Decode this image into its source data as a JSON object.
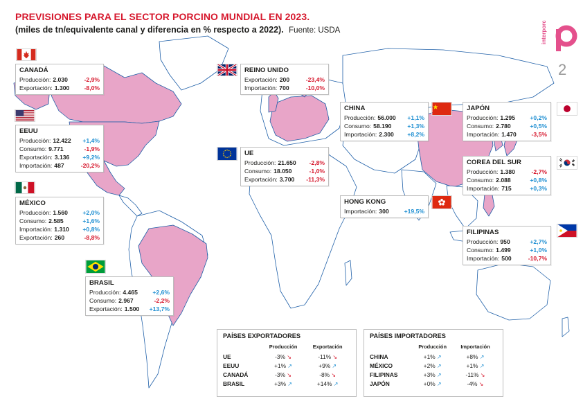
{
  "header": {
    "title": "PREVISIONES PARA EL SECTOR PORCINO MUNDIAL EN 2023.",
    "subtitle": "(miles de tn/equivalente canal y diferencia en % respecto a 2022).",
    "source": "Fuente: USDA",
    "logo_text": "interporc",
    "page_number": "2"
  },
  "colors": {
    "title_red": "#d6172c",
    "highlight_pink": "#e8a5c8",
    "land": "#ffffff",
    "border": "#1e5fa8",
    "positive": "#1f8fd2",
    "negative": "#d6172c"
  },
  "countries": {
    "canada": {
      "name": "CANADÁ",
      "flag": "canada-flag",
      "rows": [
        {
          "label": "Producción",
          "value": "2.030",
          "change": "-2,9%",
          "dir": "neg"
        },
        {
          "label": "Exportación",
          "value": "1.300",
          "change": "-8,0%",
          "dir": "neg"
        }
      ]
    },
    "eeuu": {
      "name": "EEUU",
      "flag": "usa-flag",
      "rows": [
        {
          "label": "Producción",
          "value": "12.422",
          "change": "+1,4%",
          "dir": "pos"
        },
        {
          "label": "Consumo",
          "value": "9.771",
          "change": "-1,9%",
          "dir": "neg"
        },
        {
          "label": "Exportación",
          "value": "3.136",
          "change": "+9,2%",
          "dir": "pos"
        },
        {
          "label": "Importación",
          "value": "487",
          "change": "-20,2%",
          "dir": "neg"
        }
      ]
    },
    "mexico": {
      "name": "MÉXICO",
      "flag": "mexico-flag",
      "rows": [
        {
          "label": "Producción",
          "value": "1.560",
          "change": "+2,0%",
          "dir": "pos"
        },
        {
          "label": "Consumo",
          "value": "2.585",
          "change": "+1,6%",
          "dir": "pos"
        },
        {
          "label": "Importación",
          "value": "1.310",
          "change": "+0,8%",
          "dir": "pos"
        },
        {
          "label": "Exportación",
          "value": "260",
          "change": "-8,8%",
          "dir": "neg"
        }
      ]
    },
    "brasil": {
      "name": "BRASIL",
      "flag": "brazil-flag",
      "rows": [
        {
          "label": "Producción",
          "value": "4.465",
          "change": "+2,6%",
          "dir": "pos"
        },
        {
          "label": "Consumo",
          "value": "2.967",
          "change": "-2,2%",
          "dir": "neg"
        },
        {
          "label": "Exportación",
          "value": "1.500",
          "change": "+13,7%",
          "dir": "pos"
        }
      ]
    },
    "reino_unido": {
      "name": "REINO UNIDO",
      "flag": "uk-flag",
      "rows": [
        {
          "label": "Exportación",
          "value": "200",
          "change": "-23,4%",
          "dir": "neg"
        },
        {
          "label": "Importación",
          "value": "700",
          "change": "-10,0%",
          "dir": "neg"
        }
      ]
    },
    "ue": {
      "name": "UE",
      "flag": "eu-flag",
      "rows": [
        {
          "label": "Producción",
          "value": "21.650",
          "change": "-2,8%",
          "dir": "neg"
        },
        {
          "label": "Consumo",
          "value": "18.050",
          "change": "-1,0%",
          "dir": "neg"
        },
        {
          "label": "Exportación",
          "value": "3.700",
          "change": "-11,3%",
          "dir": "neg"
        }
      ]
    },
    "china": {
      "name": "CHINA",
      "flag": "china-flag",
      "rows": [
        {
          "label": "Producción",
          "value": "56.000",
          "change": "+1,1%",
          "dir": "pos"
        },
        {
          "label": "Consumo",
          "value": "58.190",
          "change": "+1,3%",
          "dir": "pos"
        },
        {
          "label": "Importación",
          "value": "2.300",
          "change": "+8,2%",
          "dir": "pos"
        }
      ]
    },
    "hong_kong": {
      "name": "HONG KONG",
      "flag": "hongkong-flag",
      "rows": [
        {
          "label": "Importación",
          "value": "300",
          "change": "+19,5%",
          "dir": "pos"
        }
      ]
    },
    "japon": {
      "name": "JAPÓN",
      "flag": "japan-flag",
      "rows": [
        {
          "label": "Producción",
          "value": "1.295",
          "change": "+0,2%",
          "dir": "pos"
        },
        {
          "label": "Consumo",
          "value": "2.780",
          "change": "+0,5%",
          "dir": "pos"
        },
        {
          "label": "Importación",
          "value": "1.470",
          "change": "-3,5%",
          "dir": "neg"
        }
      ]
    },
    "corea": {
      "name": "COREA DEL SUR",
      "flag": "korea-flag",
      "rows": [
        {
          "label": "Producción",
          "value": "1.380",
          "change": "-2,7%",
          "dir": "neg"
        },
        {
          "label": "Consumo",
          "value": "2.088",
          "change": "+0,8%",
          "dir": "pos"
        },
        {
          "label": "Importación",
          "value": "715",
          "change": "+0,3%",
          "dir": "pos"
        }
      ]
    },
    "filipinas": {
      "name": "FILIPINAS",
      "flag": "philippines-flag",
      "rows": [
        {
          "label": "Producción",
          "value": "950",
          "change": "+2,7%",
          "dir": "pos"
        },
        {
          "label": "Consumo",
          "value": "1.499",
          "change": "+1,0%",
          "dir": "pos"
        },
        {
          "label": "Importación",
          "value": "500",
          "change": "-10,7%",
          "dir": "neg"
        }
      ]
    }
  },
  "exporters": {
    "title": "PAÍSES EXPORTADORES",
    "col1": "Producción",
    "col2": "Exportación",
    "rows": [
      {
        "country": "UE",
        "v1": "-3%",
        "d1": "dn",
        "v2": "-11%",
        "d2": "dn"
      },
      {
        "country": "EEUU",
        "v1": "+1%",
        "d1": "up",
        "v2": "+9%",
        "d2": "up"
      },
      {
        "country": "CANADÁ",
        "v1": "-3%",
        "d1": "dn",
        "v2": "-8%",
        "d2": "dn"
      },
      {
        "country": "BRASIL",
        "v1": "+3%",
        "d1": "up",
        "v2": "+14%",
        "d2": "up"
      }
    ]
  },
  "importers": {
    "title": "PAÍSES IMPORTADORES",
    "col1": "Producción",
    "col2": "Importación",
    "rows": [
      {
        "country": "CHINA",
        "v1": "+1%",
        "d1": "up",
        "v2": "+8%",
        "d2": "up"
      },
      {
        "country": "MÉXICO",
        "v1": "+2%",
        "d1": "up",
        "v2": "+1%",
        "d2": "up"
      },
      {
        "country": "FILIPINAS",
        "v1": "+3%",
        "d1": "up",
        "v2": "-11%",
        "d2": "dn"
      },
      {
        "country": "JAPÓN",
        "v1": "+0%",
        "d1": "up",
        "v2": "-4%",
        "d2": "dn"
      }
    ]
  }
}
